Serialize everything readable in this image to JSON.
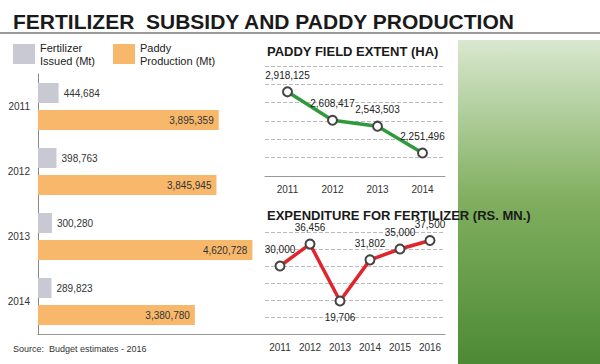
{
  "title": "FERTILIZER  SUBSIDY AND PADDY PRODUCTION",
  "source": "Source:  Budget estimates - 2016",
  "chart_data": [
    {
      "type": "bar",
      "orientation": "horizontal",
      "categories": [
        "2011",
        "2012",
        "2013",
        "2014"
      ],
      "series": [
        {
          "name": "Fertilizer Issued (Mt)",
          "color": "#c9c9d3",
          "values": [
            444684,
            398763,
            300280,
            289823
          ],
          "value_labels": [
            "444,684",
            "398,763",
            "300,280",
            "289,823"
          ]
        },
        {
          "name": "Paddy Production (Mt)",
          "color": "#f7b86c",
          "values": [
            3895359,
            3845945,
            4620728,
            3380780
          ],
          "value_labels": [
            "3,895,359",
            "3,845,945",
            "4,620,728",
            "3,380,780"
          ]
        }
      ],
      "xlim": [
        0,
        5000000
      ],
      "data_labels": true,
      "tick_labels": "y",
      "legend": "upper left",
      "grid": false
    },
    {
      "type": "line",
      "title": "PADDY FIELD EXTENT (HA)",
      "categories": [
        "2011",
        "2012",
        "2013",
        "2014"
      ],
      "values": [
        2918125,
        2608417,
        2543503,
        2251496
      ],
      "value_labels": [
        "2,918,125",
        "2,608,417",
        "2,543,503",
        "2,251,496"
      ],
      "color": "#2f9a3c",
      "marker": "circle",
      "ylim": [
        2000000,
        3200000
      ],
      "yticks": [
        2000000,
        2200000,
        2400000,
        2600000,
        2800000,
        3000000,
        3200000
      ],
      "grid": true,
      "data_labels": true,
      "tick_labels": "x"
    },
    {
      "type": "line",
      "title": "EXPENDITURE FOR FERTILIZER (RS. MN.)",
      "categories": [
        "2011",
        "2012",
        "2013",
        "2014",
        "2015",
        "2016"
      ],
      "values": [
        30000,
        36456,
        19706,
        31802,
        35000,
        37500
      ],
      "value_labels": [
        "30,000",
        "36,456",
        "19,706",
        "31,802",
        "35,000",
        "37,500"
      ],
      "color": "#e0262b",
      "marker": "circle",
      "ylim": [
        10000,
        40000
      ],
      "yticks": [
        10000,
        15000,
        20000,
        25000,
        30000,
        35000,
        40000
      ],
      "grid": true,
      "data_labels": true,
      "tick_labels": "x"
    }
  ]
}
